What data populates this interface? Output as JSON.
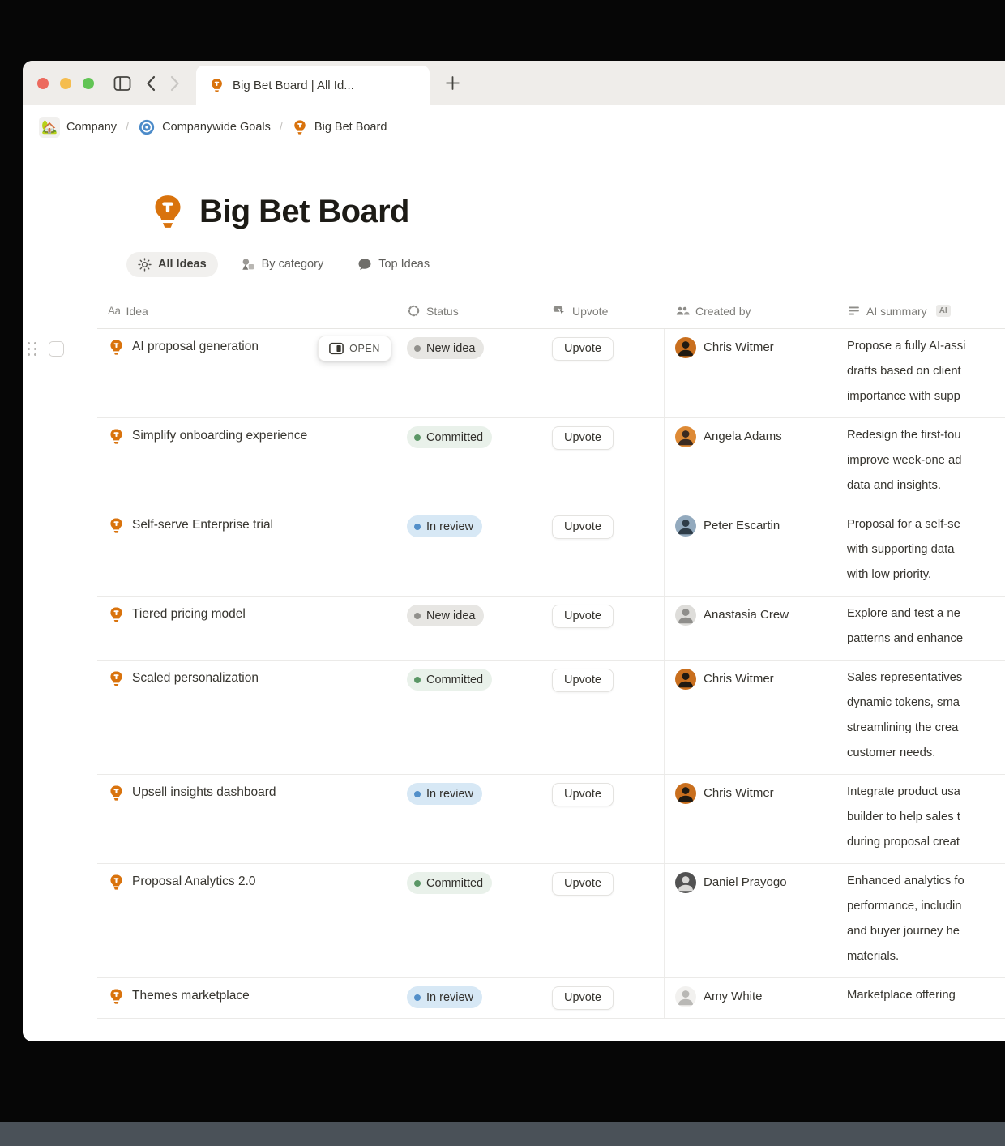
{
  "colors": {
    "accent_orange": "#D9730D",
    "target_blue": "#4C8BC9",
    "traffic": [
      "#EC6A5E",
      "#F5BD4F",
      "#61C454"
    ]
  },
  "window": {
    "tab_title": "Big Bet Board | All Id..."
  },
  "breadcrumb": {
    "separator": "/",
    "items": [
      {
        "icon": "house-icon",
        "label": "Company"
      },
      {
        "icon": "target-icon",
        "label": "Companywide Goals"
      },
      {
        "icon": "lightbulb-icon",
        "label": "Big Bet Board"
      }
    ]
  },
  "page": {
    "title": "Big Bet Board"
  },
  "view_tabs": [
    {
      "icon": "sun-icon",
      "label": "All Ideas",
      "active": true
    },
    {
      "icon": "shapes-icon",
      "label": "By category",
      "active": false
    },
    {
      "icon": "speech-bubble-icon",
      "label": "Top Ideas",
      "active": false
    }
  ],
  "table": {
    "columns": [
      {
        "icon": "text-icon",
        "label": "Idea"
      },
      {
        "icon": "spinner-icon",
        "label": "Status"
      },
      {
        "icon": "click-icon",
        "label": "Upvote"
      },
      {
        "icon": "people-icon",
        "label": "Created by"
      },
      {
        "icon": "lines-icon",
        "label": "AI summary",
        "badge": "AI"
      }
    ],
    "open_button_label": "OPEN",
    "upvote_label": "Upvote",
    "statuses": {
      "new_idea": {
        "label": "New idea",
        "bg": "#E7E6E3",
        "dot": "#91908C"
      },
      "committed": {
        "label": "Committed",
        "bg": "#E9F1EA",
        "dot": "#5B9766"
      },
      "in_review": {
        "label": "In review",
        "bg": "#D7E8F5",
        "dot": "#528FC9"
      }
    },
    "rows": [
      {
        "idea": "AI proposal generation",
        "status": "new_idea",
        "open_button": true,
        "creator": {
          "name": "Chris Witmer",
          "avatar_bg": "#C96F1E",
          "avatar_fg": "#201A12"
        },
        "summary_lines": [
          "Propose a fully AI-assi",
          "drafts based on client",
          "importance with supp"
        ]
      },
      {
        "idea": "Simplify onboarding experience",
        "status": "committed",
        "open_button": false,
        "creator": {
          "name": "Angela Adams",
          "avatar_bg": "#DE8A35",
          "avatar_fg": "#3A2A20"
        },
        "summary_lines": [
          "Redesign the first-tou",
          "improve week-one ad",
          "data and insights."
        ]
      },
      {
        "idea": "Self-serve Enterprise trial",
        "status": "in_review",
        "open_button": false,
        "creator": {
          "name": "Peter Escartin",
          "avatar_bg": "#93AABE",
          "avatar_fg": "#2E3C48"
        },
        "summary_lines": [
          "Proposal for a self-se",
          "with supporting data",
          "with low priority."
        ]
      },
      {
        "idea": "Tiered pricing model",
        "status": "new_idea",
        "open_button": false,
        "creator": {
          "name": "Anastasia Crew",
          "avatar_bg": "#DEDDDA",
          "avatar_fg": "#8F8E8B"
        },
        "summary_lines": [
          "Explore and test a ne",
          "patterns and enhance"
        ]
      },
      {
        "idea": "Scaled personalization",
        "status": "committed",
        "open_button": false,
        "creator": {
          "name": "Chris Witmer",
          "avatar_bg": "#C96F1E",
          "avatar_fg": "#201A12"
        },
        "summary_lines": [
          "Sales representatives",
          "dynamic tokens, sma",
          "streamlining the crea",
          "customer needs."
        ]
      },
      {
        "idea": "Upsell insights dashboard",
        "status": "in_review",
        "open_button": false,
        "creator": {
          "name": "Chris Witmer",
          "avatar_bg": "#C96F1E",
          "avatar_fg": "#201A12"
        },
        "summary_lines": [
          "Integrate product usa",
          "builder to help sales t",
          "during proposal creat"
        ]
      },
      {
        "idea": "Proposal Analytics 2.0",
        "status": "committed",
        "open_button": false,
        "creator": {
          "name": "Daniel Prayogo",
          "avatar_bg": "#525252",
          "avatar_fg": "#D9D8D6"
        },
        "summary_lines": [
          "Enhanced analytics fo",
          "performance, includin",
          "and buyer journey he",
          "materials."
        ]
      },
      {
        "idea": "Themes marketplace",
        "status": "in_review",
        "open_button": false,
        "creator": {
          "name": "Amy White",
          "avatar_bg": "#F2F1EF",
          "avatar_fg": "#B9B8B5"
        },
        "summary_lines": [
          "Marketplace offering"
        ]
      }
    ]
  }
}
